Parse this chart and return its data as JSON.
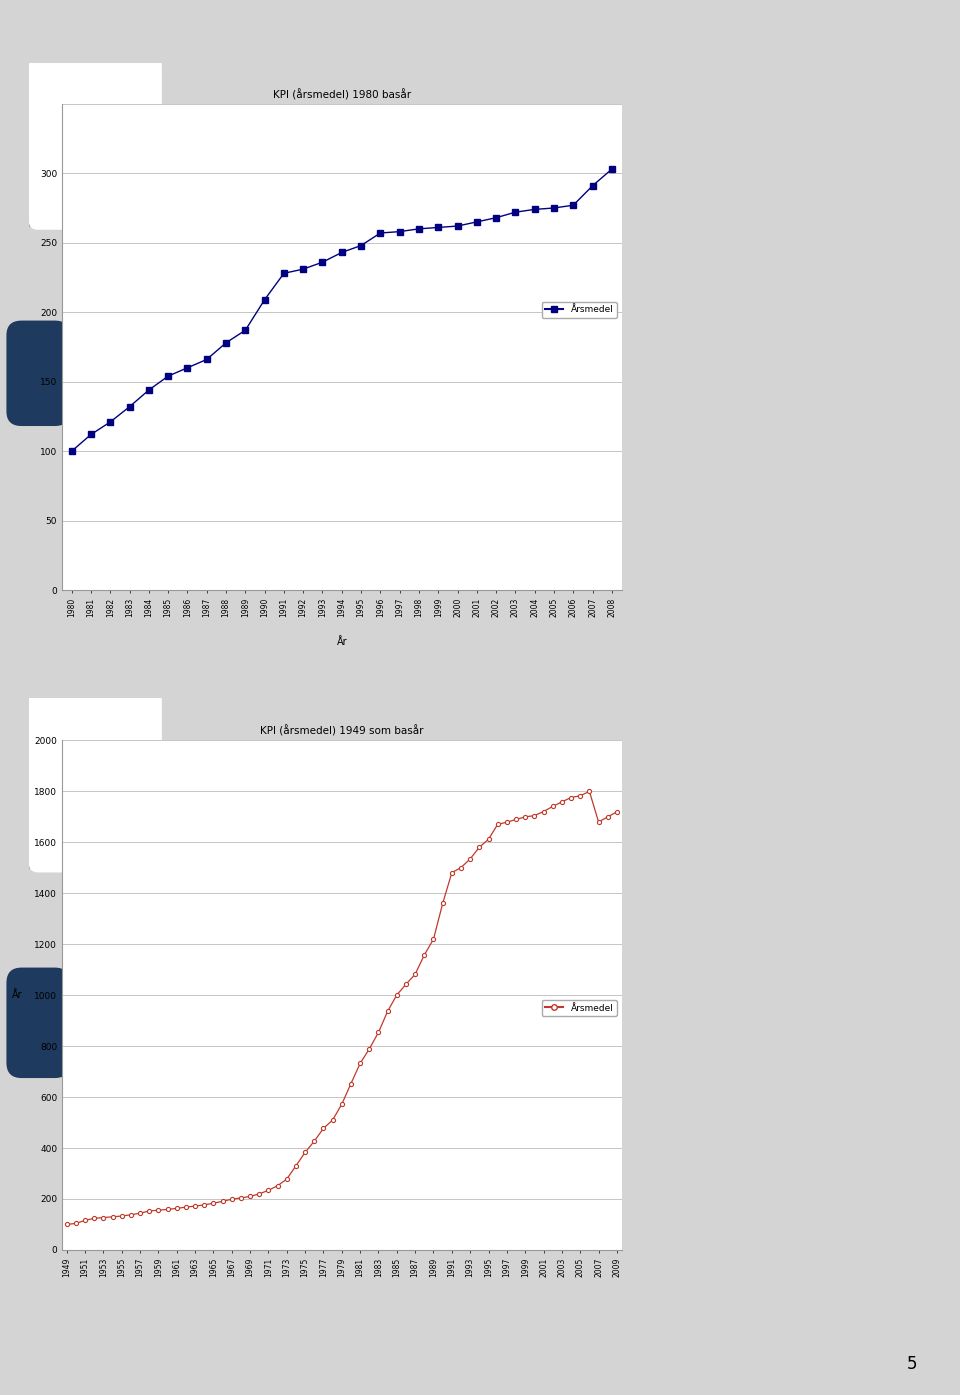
{
  "chart1": {
    "title": "KPI (årsmedel) 1980 basår",
    "xlabel": "År",
    "years": [
      1980,
      1981,
      1982,
      1983,
      1984,
      1985,
      1986,
      1987,
      1988,
      1989,
      1990,
      1991,
      1992,
      1993,
      1994,
      1995,
      1996,
      1997,
      1998,
      1999,
      2000,
      2001,
      2002,
      2003,
      2004,
      2005,
      2006,
      2007,
      2008
    ],
    "values": [
      100,
      112,
      121,
      132,
      144,
      154,
      160,
      166,
      178,
      187,
      209,
      228,
      231,
      236,
      243,
      248,
      257,
      258,
      260,
      261,
      262,
      265,
      268,
      272,
      274,
      275,
      277,
      291,
      303
    ],
    "ylim": [
      0,
      350
    ],
    "yticks": [
      0,
      50,
      100,
      150,
      200,
      250,
      300,
      350
    ],
    "line_color": "#000080",
    "marker": "s",
    "markersize": 4,
    "legend_label": "Årsmedel"
  },
  "chart2": {
    "title": "KPI (årsmedel) 1949 som basår",
    "ylabel": "År",
    "years": [
      1949,
      1950,
      1951,
      1952,
      1953,
      1954,
      1955,
      1956,
      1957,
      1958,
      1959,
      1960,
      1961,
      1962,
      1963,
      1964,
      1965,
      1966,
      1967,
      1968,
      1969,
      1970,
      1971,
      1972,
      1973,
      1974,
      1975,
      1976,
      1977,
      1978,
      1979,
      1980,
      1981,
      1982,
      1983,
      1984,
      1985,
      1986,
      1987,
      1988,
      1989,
      1990,
      1991,
      1992,
      1993,
      1994,
      1995,
      1996,
      1997,
      1998,
      1999,
      2000,
      2001,
      2002,
      2003,
      2004,
      2005,
      2006,
      2007,
      2008,
      2009
    ],
    "values": [
      100,
      104,
      116,
      124,
      127,
      130,
      133,
      138,
      144,
      153,
      156,
      159,
      163,
      168,
      172,
      177,
      183,
      191,
      199,
      204,
      210,
      220,
      234,
      252,
      278,
      330,
      383,
      427,
      477,
      510,
      572,
      653,
      732,
      789,
      854,
      937,
      1001,
      1043,
      1082,
      1158,
      1220,
      1360,
      1481,
      1501,
      1535,
      1581,
      1612,
      1671,
      1679,
      1690,
      1700,
      1705,
      1721,
      1741,
      1759,
      1776,
      1783,
      1800,
      1680,
      1700,
      1720
    ],
    "ylim": [
      0,
      2000
    ],
    "yticks": [
      0,
      200,
      400,
      600,
      800,
      1000,
      1200,
      1400,
      1600,
      1800,
      2000
    ],
    "line_color": "#c0392b",
    "marker": "o",
    "markersize": 3,
    "legend_label": "Årsmedel"
  },
  "page_bg": "#d4d4d4",
  "slide_bg": "#ffffff",
  "slide_border": "#333333",
  "green_color": "#7fb87f",
  "dark_blue_color": "#1e3a5f",
  "page_number": "5"
}
